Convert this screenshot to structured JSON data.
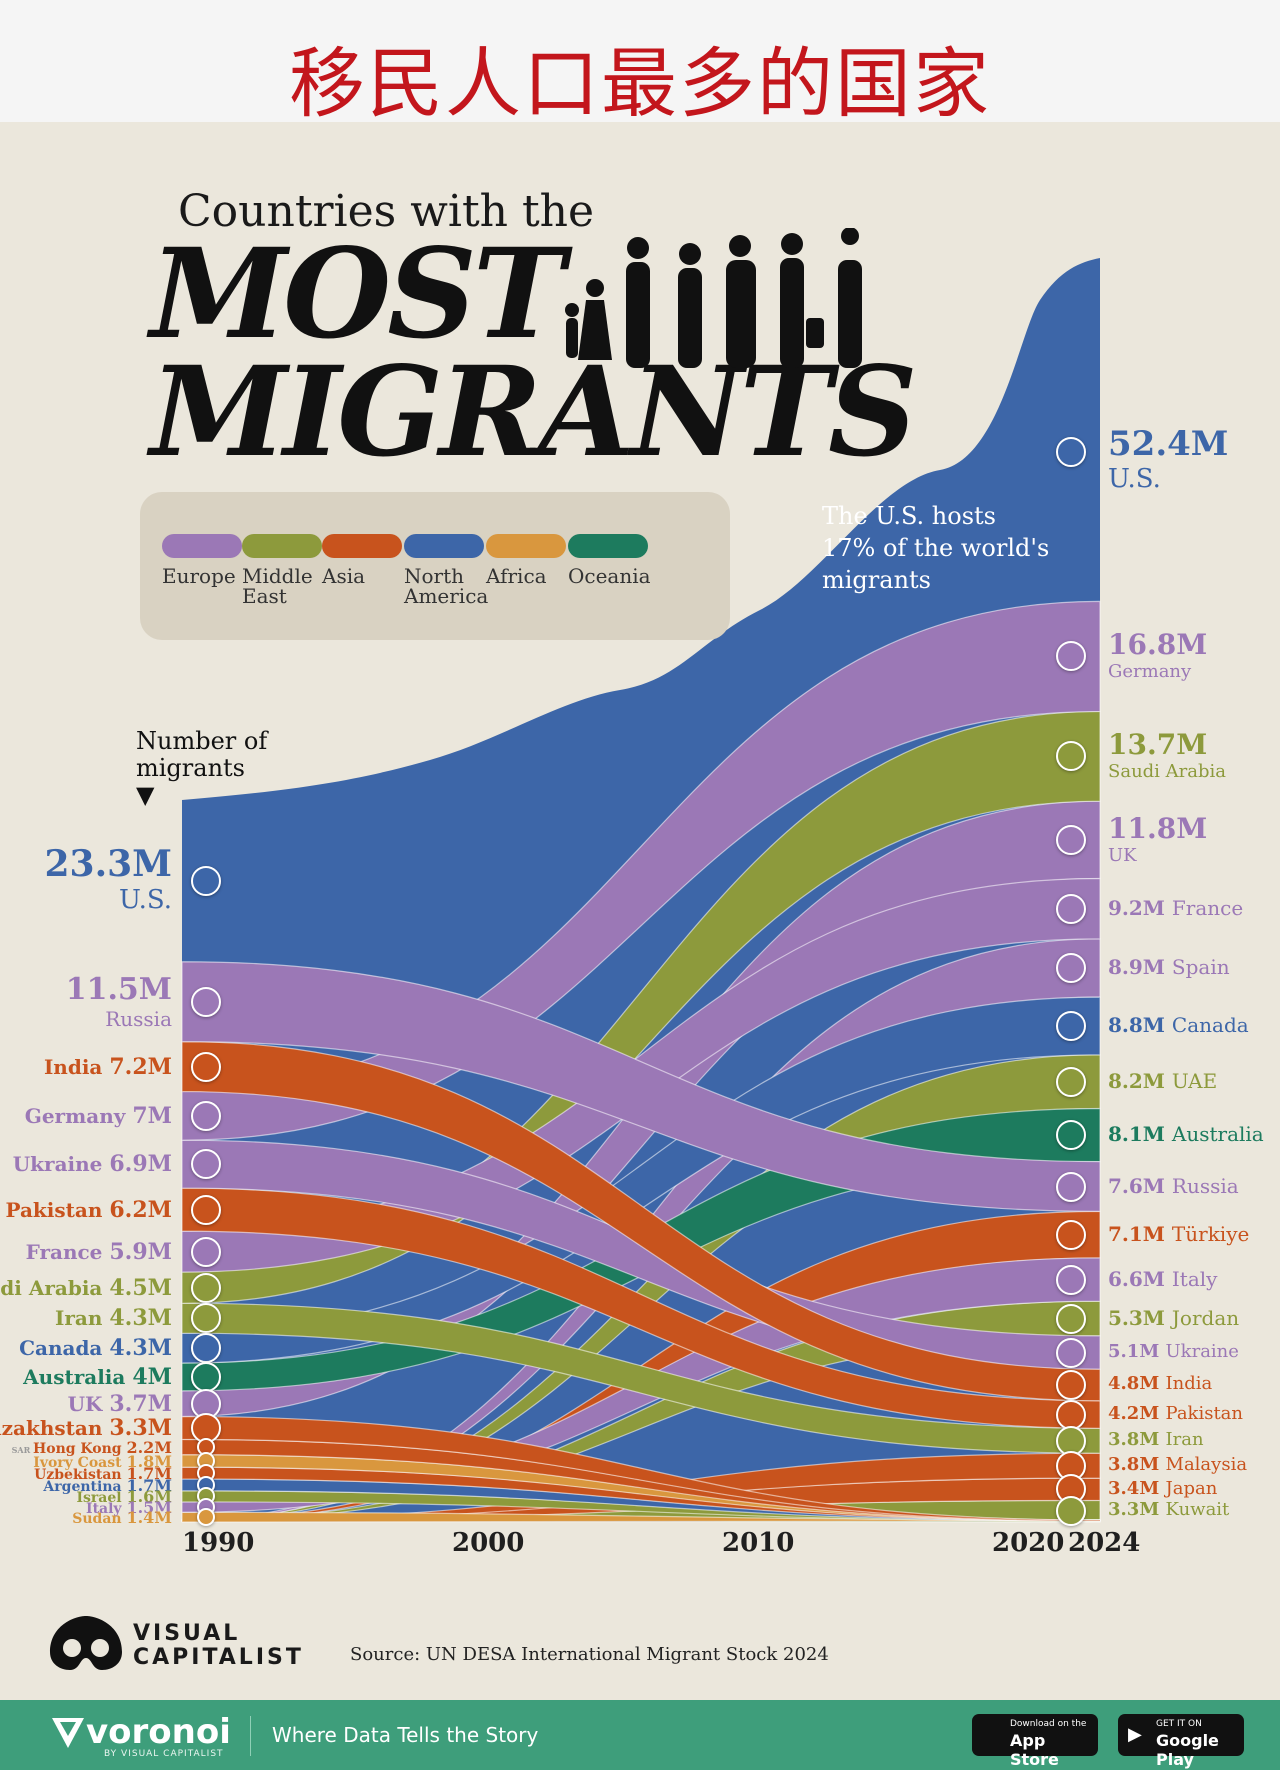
{
  "header": {
    "title_cn": "移民人口最多的国家"
  },
  "title": {
    "line1": "Countries with the",
    "line2": "MOST",
    "line3": "MIGRANTS"
  },
  "legend": [
    {
      "label": "Europe",
      "color": "#9b78b6"
    },
    {
      "label": "Middle\nEast",
      "color": "#8d9a3c"
    },
    {
      "label": "Asia",
      "color": "#c8531d"
    },
    {
      "label": "North\nAmerica",
      "color": "#3d66a8"
    },
    {
      "label": "Africa",
      "color": "#d9973e"
    },
    {
      "label": "Oceania",
      "color": "#1d7b5e"
    }
  ],
  "annotation": "The U.S. hosts 17% of the world's migrants",
  "axis_title": "Number of\nmigrants",
  "source": "Source: UN DESA International Migrant Stock 2024",
  "brand": {
    "name": "VISUAL\nCAPITALIST",
    "footer_name": "voronoi",
    "footer_by": "BY VISUAL CAPITALIST",
    "tagline": "Where Data Tells the Story",
    "appstore_top": "Download on the",
    "appstore_bottom": "App Store",
    "play_top": "GET IT ON",
    "play_bottom": "Google Play"
  },
  "chart_data": {
    "type": "area",
    "subtype": "bump-area (ranked stacked streams)",
    "x": [
      1990,
      2000,
      2010,
      2020,
      2024
    ],
    "x_ticks": [
      "1990",
      "2000",
      "2010",
      "2020",
      "2024"
    ],
    "ylabel": "Number of migrants",
    "start_1990": [
      {
        "country": "U.S.",
        "value": "23.3M",
        "region": "North America"
      },
      {
        "country": "Russia",
        "value": "11.5M",
        "region": "Europe"
      },
      {
        "country": "India",
        "value": "7.2M",
        "region": "Asia"
      },
      {
        "country": "Germany",
        "value": "7M",
        "region": "Europe"
      },
      {
        "country": "Ukraine",
        "value": "6.9M",
        "region": "Europe"
      },
      {
        "country": "Pakistan",
        "value": "6.2M",
        "region": "Asia"
      },
      {
        "country": "France",
        "value": "5.9M",
        "region": "Europe"
      },
      {
        "country": "Saudi Arabia",
        "value": "4.5M",
        "region": "Middle East"
      },
      {
        "country": "Iran",
        "value": "4.3M",
        "region": "Middle East"
      },
      {
        "country": "Canada",
        "value": "4.3M",
        "region": "North America"
      },
      {
        "country": "Australia",
        "value": "4M",
        "region": "Oceania"
      },
      {
        "country": "UK",
        "value": "3.7M",
        "region": "Europe"
      },
      {
        "country": "Kazakhstan",
        "value": "3.3M",
        "region": "Asia"
      },
      {
        "country": "Hong Kong",
        "value": "2.2M",
        "region": "Asia",
        "prefix": "SAR"
      },
      {
        "country": "Ivory Coast",
        "value": "1.8M",
        "region": "Africa"
      },
      {
        "country": "Uzbekistan",
        "value": "1.7M",
        "region": "Asia"
      },
      {
        "country": "Argentina",
        "value": "1.7M",
        "region": "North America"
      },
      {
        "country": "Israel",
        "value": "1.6M",
        "region": "Middle East"
      },
      {
        "country": "Italy",
        "value": "1.5M",
        "region": "Europe"
      },
      {
        "country": "Sudan",
        "value": "1.4M",
        "region": "Africa"
      }
    ],
    "end_2024": [
      {
        "country": "U.S.",
        "value": "52.4M",
        "region": "North America"
      },
      {
        "country": "Germany",
        "value": "16.8M",
        "region": "Europe"
      },
      {
        "country": "Saudi Arabia",
        "value": "13.7M",
        "region": "Middle East"
      },
      {
        "country": "UK",
        "value": "11.8M",
        "region": "Europe"
      },
      {
        "country": "France",
        "value": "9.2M",
        "region": "Europe"
      },
      {
        "country": "Spain",
        "value": "8.9M",
        "region": "Europe"
      },
      {
        "country": "Canada",
        "value": "8.8M",
        "region": "North America"
      },
      {
        "country": "UAE",
        "value": "8.2M",
        "region": "Middle East"
      },
      {
        "country": "Australia",
        "value": "8.1M",
        "region": "Oceania"
      },
      {
        "country": "Russia",
        "value": "7.6M",
        "region": "Europe"
      },
      {
        "country": "Türkiye",
        "value": "7.1M",
        "region": "Asia"
      },
      {
        "country": "Italy",
        "value": "6.6M",
        "region": "Europe"
      },
      {
        "country": "Jordan",
        "value": "5.3M",
        "region": "Middle East"
      },
      {
        "country": "Ukraine",
        "value": "5.1M",
        "region": "Europe"
      },
      {
        "country": "India",
        "value": "4.8M",
        "region": "Asia"
      },
      {
        "country": "Pakistan",
        "value": "4.2M",
        "region": "Asia"
      },
      {
        "country": "Iran",
        "value": "3.8M",
        "region": "Middle East"
      },
      {
        "country": "Malaysia",
        "value": "3.8M",
        "region": "Asia"
      },
      {
        "country": "Japan",
        "value": "3.4M",
        "region": "Asia"
      },
      {
        "country": "Kuwait",
        "value": "3.3M",
        "region": "Middle East"
      }
    ]
  }
}
